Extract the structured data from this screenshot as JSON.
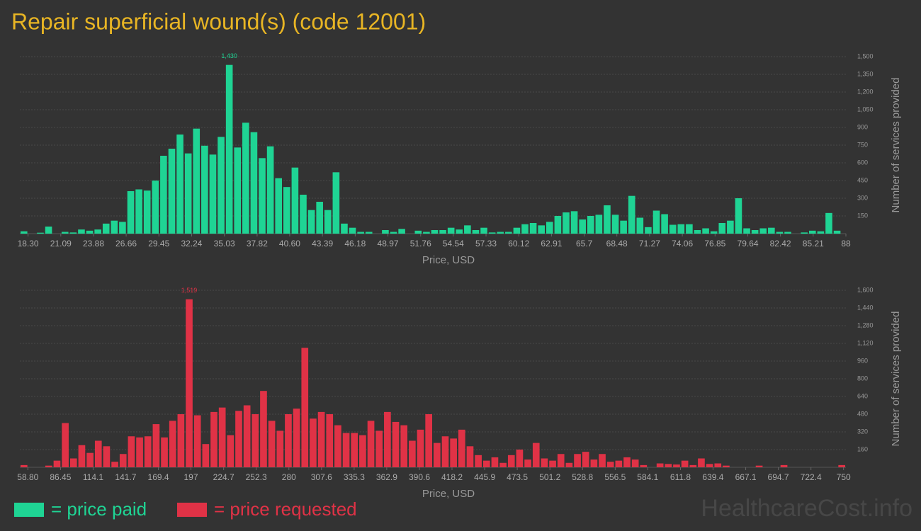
{
  "header": {
    "title": "Repair superficial wound(s) (code 12001)"
  },
  "watermark": "HealthcareCost.info",
  "chart_data": [
    {
      "type": "histogram",
      "xlabel": "Price, USD",
      "ylabel": "Number of services provided",
      "grid": true,
      "bins": [
        17.6,
        18.3,
        19,
        19.7,
        20.4,
        21.1,
        21.8,
        22.5,
        23.2,
        23.9,
        24.6,
        25.3,
        26,
        26.7,
        27.4,
        28.1,
        28.8,
        29.5,
        30.2,
        30.9,
        31.6,
        32.3,
        33,
        33.7,
        34.4,
        35.1,
        35.8,
        36.5,
        37.2,
        37.9,
        38.6,
        39.3,
        40,
        40.7,
        41.4,
        42.1,
        42.8,
        43.5,
        44.2,
        44.9,
        45.6,
        46.3,
        47,
        47.7,
        48.4,
        49.1,
        49.8,
        50.5,
        51.2,
        51.9,
        52.6,
        53.3,
        54,
        54.7,
        55.4,
        56.1,
        56.8,
        57.5,
        58.2,
        58.9,
        59.6,
        60.3,
        61,
        61.7,
        62.4,
        63.1,
        63.8,
        64.5,
        65.2,
        65.9,
        66.6,
        67.3,
        68,
        68.7,
        69.4,
        70.1,
        70.8,
        71.5,
        72.2,
        72.9,
        73.6,
        74.3,
        75,
        75.7,
        76.4,
        77.1,
        77.8,
        78.5,
        79.2,
        79.9,
        80.6,
        81.3,
        82,
        82.7,
        83.4,
        84.1,
        84.8,
        85.5,
        86.2,
        86.9,
        87.6
      ],
      "series": [
        {
          "name": "= price paid",
          "color": "#1fd494",
          "values": [
            20,
            0,
            8,
            60,
            0,
            15,
            10,
            35,
            25,
            35,
            85,
            110,
            100,
            360,
            375,
            365,
            450,
            660,
            720,
            840,
            680,
            890,
            745,
            670,
            820,
            1430,
            730,
            940,
            860,
            640,
            740,
            470,
            395,
            560,
            330,
            200,
            270,
            200,
            520,
            85,
            50,
            15,
            15,
            0,
            30,
            15,
            40,
            0,
            25,
            15,
            30,
            30,
            50,
            35,
            70,
            30,
            50,
            10,
            15,
            15,
            50,
            80,
            90,
            70,
            100,
            150,
            180,
            190,
            120,
            150,
            160,
            240,
            160,
            110,
            320,
            135,
            55,
            195,
            165,
            75,
            80,
            80,
            30,
            45,
            20,
            90,
            110,
            300,
            45,
            30,
            45,
            50,
            15,
            15,
            0,
            10,
            25,
            20,
            175,
            25
          ],
          "value_labels": [
            null,
            null,
            null,
            null,
            null,
            null,
            null,
            null,
            null,
            null,
            null,
            null,
            null,
            null,
            null,
            null,
            null,
            null,
            null,
            null,
            null,
            null,
            null,
            null,
            null,
            "1,430",
            null,
            null,
            null,
            null,
            null,
            null,
            null,
            null,
            null,
            null,
            null,
            null,
            null,
            null,
            null,
            null,
            null,
            null,
            null,
            null,
            null,
            null,
            null,
            null,
            null,
            null,
            null,
            null,
            null,
            null,
            null,
            null,
            null,
            null,
            null,
            null,
            null,
            null,
            null,
            null,
            null,
            null,
            null,
            null,
            null,
            null,
            null,
            null,
            null,
            null,
            null,
            null,
            null,
            null,
            null,
            null,
            null,
            null,
            null,
            null,
            null,
            null,
            null,
            null,
            null,
            null,
            null,
            null,
            null,
            null,
            null,
            null,
            null,
            null
          ]
        }
      ],
      "xlim": [
        17.6,
        88
      ],
      "xticks": [
        {
          "value": 18.3,
          "label": "18.30"
        },
        21.09,
        23.88,
        26.66,
        29.45,
        32.24,
        35.03,
        37.82,
        {
          "value": 40.6,
          "label": "40.60"
        },
        43.39,
        46.18,
        48.97,
        51.76,
        54.54,
        57.33,
        60.12,
        62.91,
        65.7,
        68.48,
        71.27,
        74.06,
        76.85,
        79.64,
        82.42,
        85.21,
        88
      ],
      "ylim": [
        0,
        1500
      ],
      "yticks": [
        150,
        300,
        450,
        600,
        750,
        900,
        {
          "value": 1050,
          "label": "1,050"
        },
        {
          "value": 1200,
          "label": "1,200"
        },
        {
          "value": 1350,
          "label": "1,350"
        },
        {
          "value": 1500,
          "label": "1,500"
        }
      ]
    },
    {
      "type": "histogram",
      "xlabel": "Price, USD",
      "ylabel": "Number of services provided",
      "grid": true,
      "bins": [
        52,
        59,
        66,
        73,
        80,
        87,
        94,
        101,
        108,
        115,
        122,
        129,
        136,
        143,
        150,
        157,
        164,
        171,
        178,
        185,
        192,
        199,
        206,
        213,
        220,
        227,
        234,
        241,
        248,
        255,
        262,
        269,
        276,
        283,
        290,
        297,
        304,
        311,
        318,
        325,
        332,
        339,
        346,
        353,
        360,
        367,
        374,
        381,
        388,
        395,
        402,
        409,
        416,
        423,
        430,
        437,
        444,
        451,
        458,
        465,
        472,
        479,
        486,
        493,
        500,
        507,
        514,
        521,
        528,
        535,
        542,
        549,
        556,
        563,
        570,
        577,
        584,
        591,
        598,
        605,
        612,
        619,
        626,
        633,
        640,
        647,
        654,
        661,
        668,
        675,
        682,
        689,
        696,
        703,
        710,
        717,
        724,
        731,
        738,
        745,
        752
      ],
      "series": [
        {
          "name": "= price requested",
          "color": "#e03246",
          "values": [
            20,
            0,
            0,
            15,
            60,
            400,
            80,
            200,
            130,
            240,
            190,
            50,
            120,
            280,
            270,
            280,
            390,
            270,
            420,
            480,
            1519,
            470,
            210,
            500,
            540,
            290,
            510,
            560,
            480,
            690,
            420,
            330,
            480,
            530,
            1080,
            440,
            500,
            480,
            380,
            310,
            310,
            290,
            420,
            330,
            500,
            410,
            380,
            240,
            340,
            480,
            220,
            280,
            260,
            340,
            190,
            110,
            60,
            90,
            40,
            110,
            160,
            70,
            220,
            80,
            60,
            120,
            40,
            120,
            140,
            70,
            120,
            50,
            60,
            90,
            70,
            20,
            0,
            35,
            30,
            25,
            60,
            20,
            80,
            30,
            35,
            15,
            0,
            0,
            0,
            15,
            0,
            0,
            20,
            0,
            0,
            0,
            0,
            0,
            0,
            20
          ],
          "value_labels": [
            null,
            null,
            null,
            null,
            null,
            null,
            null,
            null,
            null,
            null,
            null,
            null,
            null,
            null,
            null,
            null,
            null,
            null,
            null,
            null,
            "1,519",
            null,
            null,
            null,
            null,
            null,
            null,
            null,
            null,
            null,
            null,
            null,
            null,
            null,
            null,
            null,
            null,
            null,
            null,
            null,
            null,
            null,
            null,
            null,
            null,
            null,
            null,
            null,
            null,
            null,
            null,
            null,
            null,
            null,
            null,
            null,
            null,
            null,
            null,
            null,
            null,
            null,
            null,
            null,
            null,
            null,
            null,
            null,
            null,
            null,
            null,
            null,
            null,
            null,
            null,
            null,
            null,
            null,
            null,
            null,
            null,
            null,
            null,
            null,
            null,
            null,
            null,
            null,
            null,
            null,
            null,
            null,
            null,
            null,
            null,
            null,
            null,
            null,
            null,
            null
          ]
        }
      ],
      "xlim": [
        52,
        752
      ],
      "xticks": [
        {
          "value": 58.8,
          "label": "58.80"
        },
        86.45,
        114.1,
        141.7,
        169.4,
        197,
        224.7,
        252.3,
        280,
        307.6,
        335.3,
        362.9,
        390.6,
        418.2,
        445.9,
        473.5,
        501.2,
        528.8,
        556.5,
        584.1,
        611.8,
        639.4,
        667.1,
        694.7,
        722.4,
        750
      ],
      "ylim": [
        0,
        1600
      ],
      "yticks": [
        160,
        320,
        480,
        640,
        800,
        960,
        {
          "value": 1120,
          "label": "1,120"
        },
        {
          "value": 1280,
          "label": "1,280"
        },
        {
          "value": 1440,
          "label": "1,440"
        },
        {
          "value": 1600,
          "label": "1,600"
        }
      ]
    }
  ]
}
